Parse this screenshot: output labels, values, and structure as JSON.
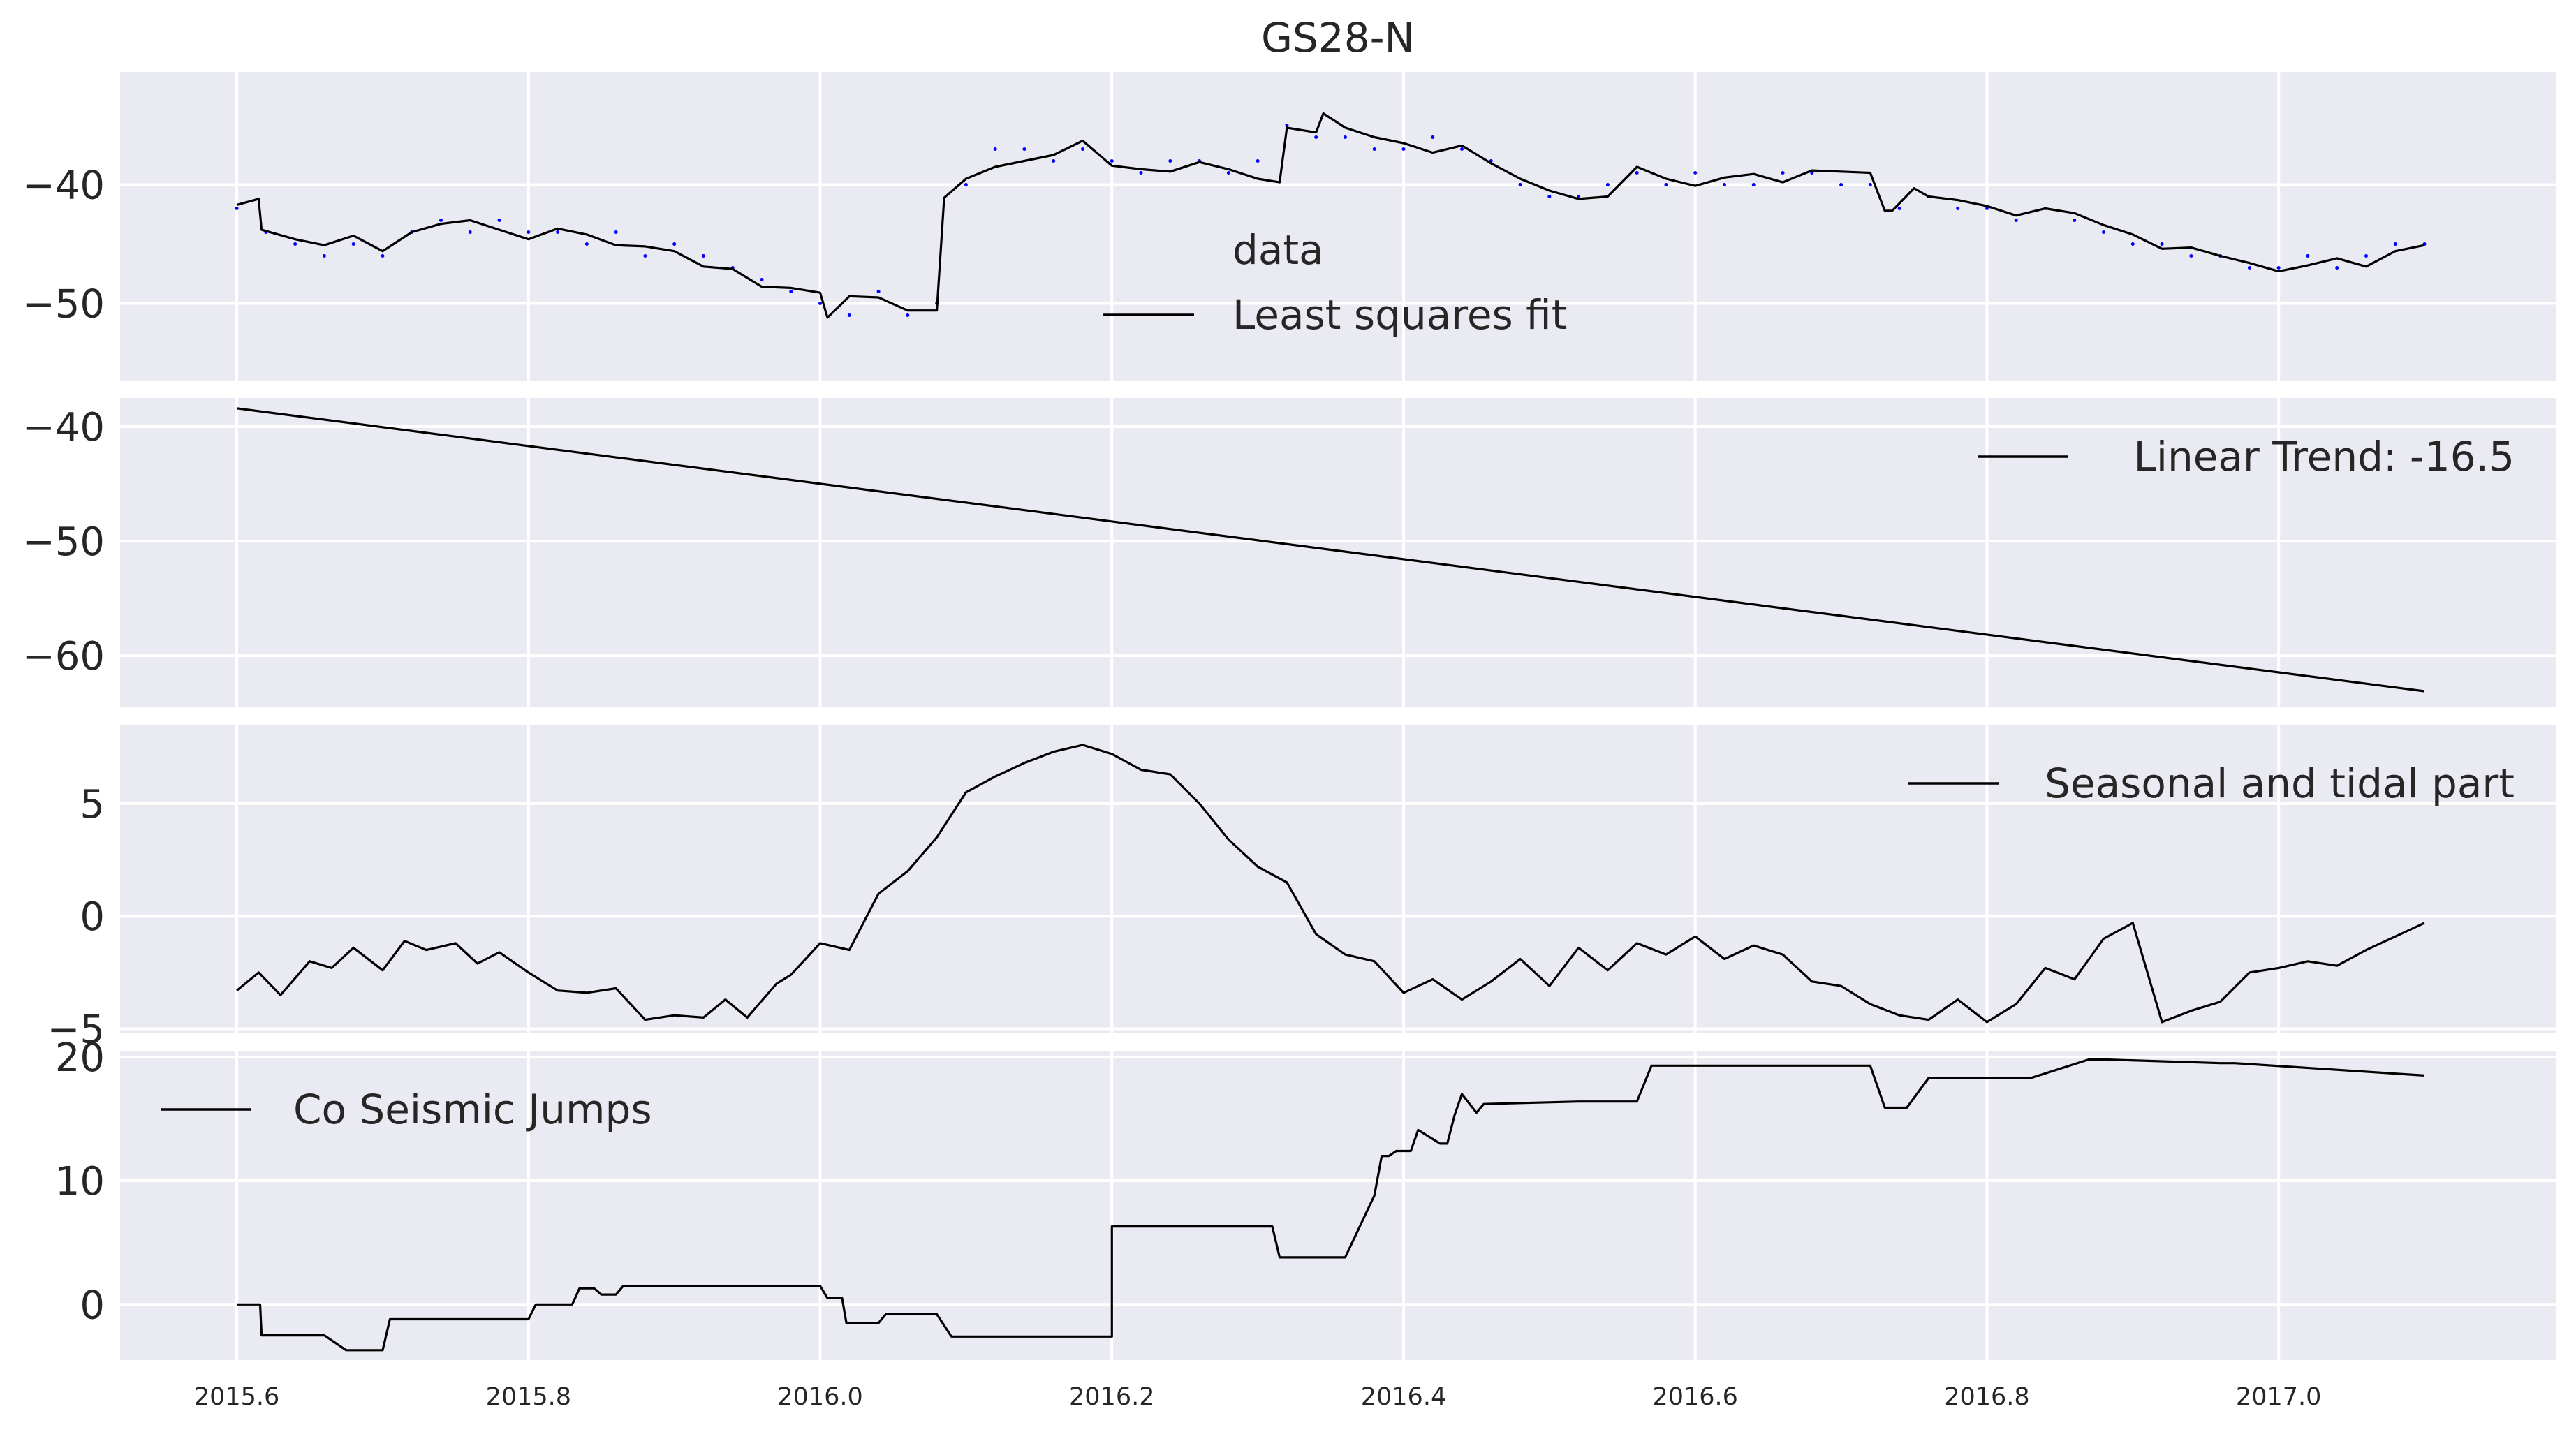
{
  "title": "GS28-N",
  "colors": {
    "panel_bg": "#EAEAF2",
    "grid": "#FFFFFF",
    "line": "#000000",
    "points": "#0000FF",
    "text": "#262626"
  },
  "xaxis": {
    "min": 2015.52,
    "max": 2017.19,
    "ticks": [
      2015.6,
      2015.8,
      2016.0,
      2016.2,
      2016.4,
      2016.6,
      2016.8,
      2017.0
    ],
    "tick_labels": [
      "2015.6",
      "2015.8",
      "2016.0",
      "2016.2",
      "2016.4",
      "2016.6",
      "2016.8",
      "2017.0"
    ]
  },
  "chart_data": [
    {
      "type": "scatter",
      "title": "GS28-N",
      "ylim": [
        -56.5,
        -30.5
      ],
      "yticks": [
        -50,
        -40
      ],
      "ytick_labels": [
        "−50",
        "−40"
      ],
      "legend": {
        "placement": "center",
        "entries": [
          "data",
          "Least squares fit"
        ]
      },
      "series": [
        {
          "name": "data",
          "style": "points",
          "x": [
            2015.6,
            2015.62,
            2015.64,
            2015.66,
            2015.68,
            2015.7,
            2015.72,
            2015.74,
            2015.76,
            2015.78,
            2015.8,
            2015.82,
            2015.84,
            2015.86,
            2015.88,
            2015.9,
            2015.92,
            2015.94,
            2015.96,
            2015.98,
            2016.0,
            2016.02,
            2016.04,
            2016.06,
            2016.08,
            2016.1,
            2016.12,
            2016.14,
            2016.16,
            2016.18,
            2016.2,
            2016.22,
            2016.24,
            2016.26,
            2016.28,
            2016.3,
            2016.32,
            2016.34,
            2016.36,
            2016.38,
            2016.4,
            2016.42,
            2016.44,
            2016.46,
            2016.48,
            2016.5,
            2016.52,
            2016.54,
            2016.56,
            2016.58,
            2016.6,
            2016.62,
            2016.64,
            2016.66,
            2016.68,
            2016.7,
            2016.72,
            2016.74,
            2016.76,
            2016.78,
            2016.8,
            2016.82,
            2016.84,
            2016.86,
            2016.88,
            2016.9,
            2016.92,
            2016.94,
            2016.96,
            2016.98,
            2017.0,
            2017.02,
            2017.04,
            2017.06,
            2017.08,
            2017.1
          ],
          "y": [
            -42,
            -44,
            -45,
            -46,
            -45,
            -46,
            -44,
            -43,
            -44,
            -43,
            -44,
            -44,
            -45,
            -44,
            -46,
            -45,
            -46,
            -47,
            -48,
            -49,
            -50,
            -51,
            -49,
            -51,
            -50,
            -40,
            -37,
            -37,
            -38,
            -37,
            -38,
            -39,
            -38,
            -38,
            -39,
            -38,
            -35,
            -36,
            -36,
            -37,
            -37,
            -36,
            -37,
            -38,
            -40,
            -41,
            -41,
            -40,
            -39,
            -40,
            -39,
            -40,
            -40,
            -39,
            -39,
            -40,
            -40,
            -42,
            -41,
            -42,
            -42,
            -43,
            -42,
            -43,
            -44,
            -45,
            -45,
            -46,
            -46,
            -47,
            -47,
            -46,
            -47,
            -46,
            -45,
            -45
          ]
        },
        {
          "name": "Least squares fit",
          "style": "line",
          "x": [
            2015.6,
            2015.615,
            2015.617,
            2015.64,
            2015.66,
            2015.68,
            2015.7,
            2015.72,
            2015.74,
            2015.76,
            2015.78,
            2015.8,
            2015.82,
            2015.84,
            2015.86,
            2015.88,
            2015.9,
            2015.92,
            2015.94,
            2015.96,
            2015.98,
            2016.0,
            2016.005,
            2016.02,
            2016.04,
            2016.06,
            2016.08,
            2016.085,
            2016.1,
            2016.12,
            2016.14,
            2016.16,
            2016.18,
            2016.2,
            2016.22,
            2016.24,
            2016.26,
            2016.28,
            2016.3,
            2016.315,
            2016.32,
            2016.34,
            2016.345,
            2016.36,
            2016.38,
            2016.4,
            2016.42,
            2016.44,
            2016.46,
            2016.48,
            2016.5,
            2016.52,
            2016.54,
            2016.56,
            2016.58,
            2016.6,
            2016.62,
            2016.64,
            2016.66,
            2016.68,
            2016.7,
            2016.72,
            2016.73,
            2016.735,
            2016.75,
            2016.76,
            2016.78,
            2016.8,
            2016.82,
            2016.84,
            2016.86,
            2016.88,
            2016.9,
            2016.92,
            2016.94,
            2016.96,
            2016.98,
            2017.0,
            2017.02,
            2017.04,
            2017.06,
            2017.08,
            2017.1
          ],
          "y": [
            -41.7,
            -41.2,
            -43.8,
            -44.6,
            -45.1,
            -44.3,
            -45.6,
            -44,
            -43.3,
            -43,
            -43.8,
            -44.6,
            -43.7,
            -44.2,
            -45.1,
            -45.2,
            -45.6,
            -46.9,
            -47.1,
            -48.6,
            -48.7,
            -49.1,
            -51.2,
            -49.4,
            -49.5,
            -50.6,
            -50.6,
            -41.1,
            -39.5,
            -38.5,
            -38,
            -37.5,
            -36.3,
            -38.4,
            -38.7,
            -38.9,
            -38.1,
            -38.7,
            -39.5,
            -39.8,
            -35.2,
            -35.6,
            -34,
            -35.2,
            -36,
            -36.5,
            -37.3,
            -36.7,
            -38.2,
            -39.5,
            -40.5,
            -41.2,
            -41,
            -38.5,
            -39.5,
            -40.1,
            -39.4,
            -39.1,
            -39.8,
            -38.8,
            -38.9,
            -39,
            -42.2,
            -42.2,
            -40.3,
            -41,
            -41.3,
            -41.8,
            -42.6,
            -42,
            -42.4,
            -43.4,
            -44.2,
            -45.4,
            -45.3,
            -46,
            -46.6,
            -47.3,
            -46.8,
            -46.2,
            -46.9,
            -45.6,
            -45.1
          ]
        }
      ]
    },
    {
      "type": "line",
      "ylim": [
        -64.5,
        -37.5
      ],
      "yticks": [
        -60,
        -50,
        -40
      ],
      "ytick_labels": [
        "−60",
        "−50",
        "−40"
      ],
      "legend": {
        "placement": "top-right",
        "entries": [
          "Linear Trend: -16.5"
        ]
      },
      "series": [
        {
          "name": "Linear Trend: -16.5",
          "x": [
            2015.6,
            2017.1
          ],
          "y": [
            -38.4,
            -63.1
          ]
        }
      ]
    },
    {
      "type": "line",
      "ylim": [
        -5.2,
        8.5
      ],
      "yticks": [
        -5,
        0,
        5
      ],
      "ytick_labels": [
        "−5",
        "0",
        "5"
      ],
      "legend": {
        "placement": "top-right",
        "entries": [
          "Seasonal and tidal part"
        ]
      },
      "series": [
        {
          "name": "Seasonal and tidal part",
          "x": [
            2015.6,
            2015.615,
            2015.63,
            2015.65,
            2015.665,
            2015.68,
            2015.7,
            2015.715,
            2015.73,
            2015.75,
            2015.765,
            2015.78,
            2015.8,
            2015.82,
            2015.84,
            2015.86,
            2015.88,
            2015.9,
            2015.92,
            2015.935,
            2015.95,
            2015.97,
            2015.98,
            2016.0,
            2016.02,
            2016.04,
            2016.06,
            2016.08,
            2016.1,
            2016.12,
            2016.14,
            2016.16,
            2016.18,
            2016.2,
            2016.22,
            2016.24,
            2016.26,
            2016.28,
            2016.3,
            2016.32,
            2016.34,
            2016.36,
            2016.38,
            2016.4,
            2016.42,
            2016.44,
            2016.46,
            2016.48,
            2016.5,
            2016.52,
            2016.54,
            2016.56,
            2016.58,
            2016.6,
            2016.62,
            2016.64,
            2016.66,
            2016.68,
            2016.7,
            2016.72,
            2016.74,
            2016.76,
            2016.78,
            2016.8,
            2016.82,
            2016.84,
            2016.86,
            2016.88,
            2016.9,
            2016.92,
            2016.94,
            2016.96,
            2016.98,
            2017.0,
            2017.02,
            2017.04,
            2017.06,
            2017.08,
            2017.1
          ],
          "y": [
            -3.3,
            -2.5,
            -3.5,
            -2,
            -2.3,
            -1.4,
            -2.4,
            -1.1,
            -1.5,
            -1.2,
            -2.1,
            -1.6,
            -2.5,
            -3.3,
            -3.4,
            -3.2,
            -4.6,
            -4.4,
            -4.5,
            -3.7,
            -4.5,
            -3,
            -2.6,
            -1.2,
            -1.5,
            1,
            2,
            3.5,
            5.5,
            6.2,
            6.8,
            7.3,
            7.6,
            7.2,
            6.5,
            6.3,
            5,
            3.4,
            2.2,
            1.5,
            -0.8,
            -1.7,
            -2,
            -3.4,
            -2.8,
            -3.7,
            -2.9,
            -1.9,
            -3.1,
            -1.4,
            -2.4,
            -1.2,
            -1.7,
            -0.9,
            -1.9,
            -1.3,
            -1.7,
            -2.9,
            -3.1,
            -3.9,
            -4.4,
            -4.6,
            -3.7,
            -4.7,
            -3.9,
            -2.3,
            -2.8,
            -1.0,
            -0.3,
            -4.7,
            -4.2,
            -3.8,
            -2.5,
            -2.3,
            -2.0,
            -2.2,
            -1.5,
            -0.9,
            -0.3
          ]
        }
      ]
    },
    {
      "type": "line",
      "ylim": [
        -4.5,
        20.5
      ],
      "yticks": [
        0,
        10,
        20
      ],
      "ytick_labels": [
        "0",
        "10",
        "20"
      ],
      "legend": {
        "placement": "top-left",
        "entries": [
          "Co Seismic Jumps"
        ]
      },
      "series": [
        {
          "name": "Co Seismic Jumps",
          "step": true,
          "x": [
            2015.6,
            2015.616,
            2015.617,
            2015.66,
            2015.675,
            2015.7,
            2015.705,
            2015.8,
            2015.805,
            2015.83,
            2015.835,
            2015.845,
            2015.85,
            2015.86,
            2015.865,
            2016.0,
            2016.005,
            2016.015,
            2016.018,
            2016.04,
            2016.045,
            2016.08,
            2016.09,
            2016.2,
            2016.2,
            2016.31,
            2016.315,
            2016.32,
            2016.36,
            2016.38,
            2016.38,
            2016.385,
            2016.39,
            2016.395,
            2016.405,
            2016.41,
            2016.425,
            2016.43,
            2016.435,
            2016.44,
            2016.45,
            2016.455,
            2016.52,
            2016.56,
            2016.57,
            2016.72,
            2016.73,
            2016.745,
            2016.76,
            2016.82,
            2016.83,
            2016.87,
            2016.88,
            2016.96,
            2016.97,
            2017.1
          ],
          "y": [
            0,
            0,
            -2.5,
            -2.5,
            -3.7,
            -3.7,
            -1.2,
            -1.2,
            0,
            0,
            1.3,
            1.3,
            0.8,
            0.8,
            1.5,
            1.5,
            0.5,
            0.5,
            -1.5,
            -1.5,
            -0.8,
            -0.8,
            -2.6,
            -2.6,
            6.3,
            6.3,
            3.8,
            3.8,
            3.8,
            8.8,
            8.8,
            12,
            12,
            12.4,
            12.4,
            14.1,
            13,
            13,
            15.3,
            17,
            15.5,
            16.2,
            16.4,
            16.4,
            19.3,
            19.3,
            15.9,
            15.9,
            18.3,
            18.3,
            18.3,
            19.8,
            19.8,
            19.5,
            19.5,
            18.5
          ]
        }
      ]
    }
  ]
}
